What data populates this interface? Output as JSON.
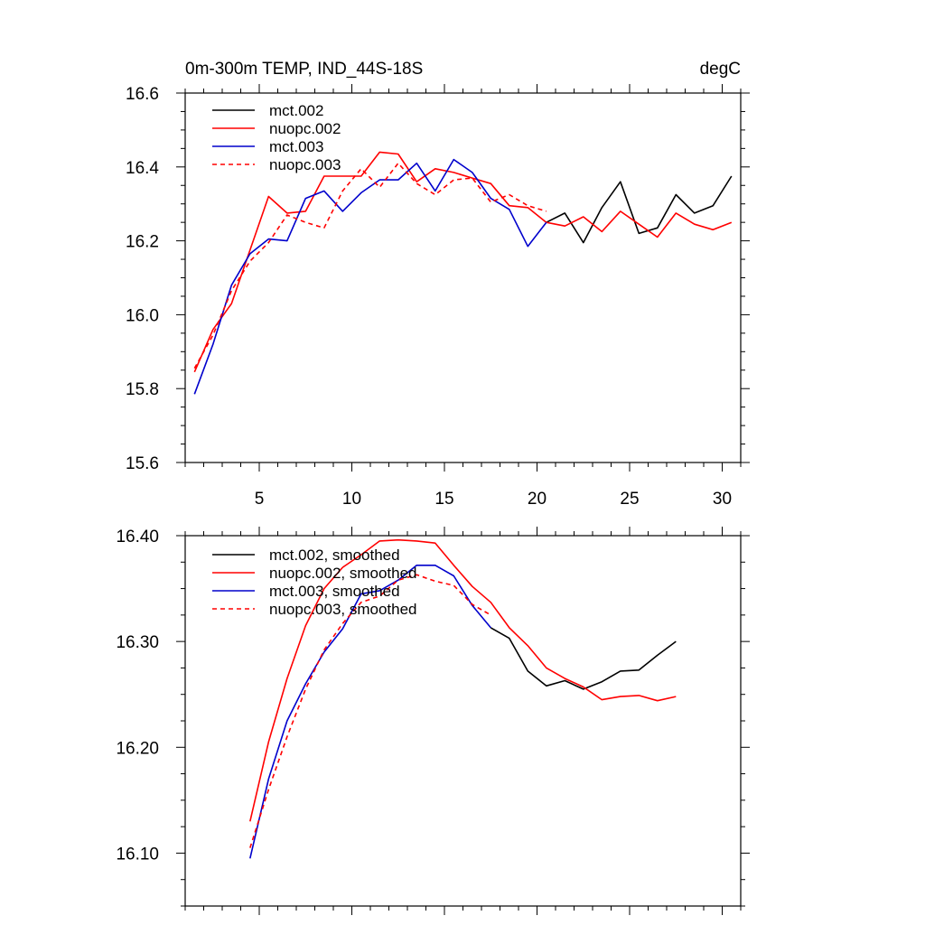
{
  "chart_data": [
    {
      "type": "line",
      "title_left": "0m-300m TEMP, IND_44S-18S",
      "title_right": "degC",
      "xlim": [
        1,
        31
      ],
      "ylim": [
        15.6,
        16.6
      ],
      "x_ticks": [
        5,
        10,
        15,
        20,
        25,
        30
      ],
      "x_tick_labels": [
        "5",
        "10",
        "15",
        "20",
        "25",
        "30"
      ],
      "y_ticks": [
        15.6,
        15.8,
        16.0,
        16.2,
        16.4,
        16.6
      ],
      "y_tick_labels": [
        "15.6",
        "15.8",
        "16.0",
        "16.2",
        "16.4",
        "16.6"
      ],
      "legend_position": "top-left",
      "series": [
        {
          "name": "mct.002",
          "color": "#000000",
          "dash": "solid",
          "x": [
            20.5,
            21.5,
            22.5,
            23.5,
            24.5,
            25.5,
            26.5,
            27.5,
            28.5,
            29.5,
            30.5
          ],
          "values": [
            16.25,
            16.275,
            16.195,
            16.29,
            16.36,
            16.22,
            16.235,
            16.325,
            16.275,
            16.295,
            16.375
          ]
        },
        {
          "name": "nuopc.002",
          "color": "#ff0000",
          "dash": "solid",
          "x": [
            1.5,
            2.5,
            3.5,
            4.5,
            5.5,
            6.5,
            7.5,
            8.5,
            9.5,
            10.5,
            11.5,
            12.5,
            13.5,
            14.5,
            15.5,
            16.5,
            17.5,
            18.5,
            19.5,
            20.5,
            21.5,
            22.5,
            23.5,
            24.5,
            25.5,
            26.5,
            27.5,
            28.5,
            29.5,
            30.5
          ],
          "values": [
            15.845,
            15.96,
            16.03,
            16.175,
            16.32,
            16.275,
            16.28,
            16.375,
            16.375,
            16.375,
            16.44,
            16.435,
            16.36,
            16.395,
            16.385,
            16.37,
            16.355,
            16.295,
            16.29,
            16.25,
            16.24,
            16.265,
            16.225,
            16.28,
            16.245,
            16.21,
            16.275,
            16.245,
            16.23,
            16.25
          ]
        },
        {
          "name": "mct.003",
          "color": "#0000cc",
          "dash": "solid",
          "x": [
            1.5,
            2.5,
            3.5,
            4.5,
            5.5,
            6.5,
            7.5,
            8.5,
            9.5,
            10.5,
            11.5,
            12.5,
            13.5,
            14.5,
            15.5,
            16.5,
            17.5,
            18.5,
            19.5,
            20.5
          ],
          "values": [
            15.785,
            15.92,
            16.08,
            16.165,
            16.205,
            16.2,
            16.315,
            16.335,
            16.28,
            16.33,
            16.365,
            16.365,
            16.41,
            16.335,
            16.42,
            16.385,
            16.315,
            16.285,
            16.185,
            16.25
          ]
        },
        {
          "name": "nuopc.003",
          "color": "#ff0000",
          "dash": "dashed",
          "x": [
            1.5,
            2.5,
            3.5,
            4.5,
            5.5,
            6.5,
            7.5,
            8.5,
            9.5,
            10.5,
            11.5,
            12.5,
            13.5,
            14.5,
            15.5,
            16.5,
            17.5,
            18.5,
            19.5,
            20.5
          ],
          "values": [
            15.855,
            15.945,
            16.065,
            16.145,
            16.195,
            16.27,
            16.25,
            16.235,
            16.335,
            16.395,
            16.345,
            16.41,
            16.355,
            16.325,
            16.365,
            16.37,
            16.305,
            16.325,
            16.295,
            16.28
          ]
        }
      ]
    },
    {
      "type": "line",
      "xlim": [
        1,
        31
      ],
      "ylim": [
        16.05,
        16.4
      ],
      "x_ticks": [
        5,
        10,
        15,
        20,
        25,
        30
      ],
      "y_ticks": [
        16.1,
        16.2,
        16.3,
        16.4
      ],
      "y_tick_labels": [
        "16.10",
        "16.20",
        "16.30",
        "16.40"
      ],
      "legend_position": "top-left",
      "series": [
        {
          "name": "mct.002, smoothed",
          "color": "#000000",
          "dash": "solid",
          "x": [
            17.5,
            18.5,
            19.5,
            20.5,
            21.5,
            22.5,
            23.5,
            24.5,
            25.5,
            26.5,
            27.5
          ],
          "values": [
            16.313,
            16.303,
            16.272,
            16.258,
            16.263,
            16.255,
            16.262,
            16.272,
            16.273,
            16.287,
            16.3
          ]
        },
        {
          "name": "nuopc.002, smoothed",
          "color": "#ff0000",
          "dash": "solid",
          "x": [
            4.5,
            5.5,
            6.5,
            7.5,
            8.5,
            9.5,
            10.5,
            11.5,
            12.5,
            13.5,
            14.5,
            15.5,
            16.5,
            17.5,
            18.5,
            19.5,
            20.5,
            21.5,
            22.5,
            23.5,
            24.5,
            25.5,
            26.5,
            27.5
          ],
          "values": [
            16.13,
            16.205,
            16.265,
            16.315,
            16.35,
            16.37,
            16.382,
            16.395,
            16.396,
            16.395,
            16.393,
            16.372,
            16.352,
            16.337,
            16.313,
            16.296,
            16.275,
            16.265,
            16.257,
            16.245,
            16.248,
            16.249,
            16.244,
            16.248
          ]
        },
        {
          "name": "mct.003, smoothed",
          "color": "#0000cc",
          "dash": "solid",
          "x": [
            4.5,
            5.5,
            6.5,
            7.5,
            8.5,
            9.5,
            10.5,
            11.5,
            12.5,
            13.5,
            14.5,
            15.5,
            16.5,
            17.5
          ],
          "values": [
            16.095,
            16.17,
            16.225,
            16.26,
            16.29,
            16.312,
            16.345,
            16.348,
            16.358,
            16.372,
            16.372,
            16.362,
            16.334,
            16.313
          ]
        },
        {
          "name": "nuopc.003, smoothed",
          "color": "#ff0000",
          "dash": "dashed",
          "x": [
            4.5,
            5.5,
            6.5,
            7.5,
            8.5,
            9.5,
            10.5,
            11.5,
            12.5,
            13.5,
            14.5,
            15.5,
            16.5,
            17.5
          ],
          "values": [
            16.105,
            16.16,
            16.21,
            16.255,
            16.292,
            16.317,
            16.337,
            16.343,
            16.358,
            16.363,
            16.357,
            16.353,
            16.335,
            16.325
          ]
        }
      ]
    }
  ]
}
